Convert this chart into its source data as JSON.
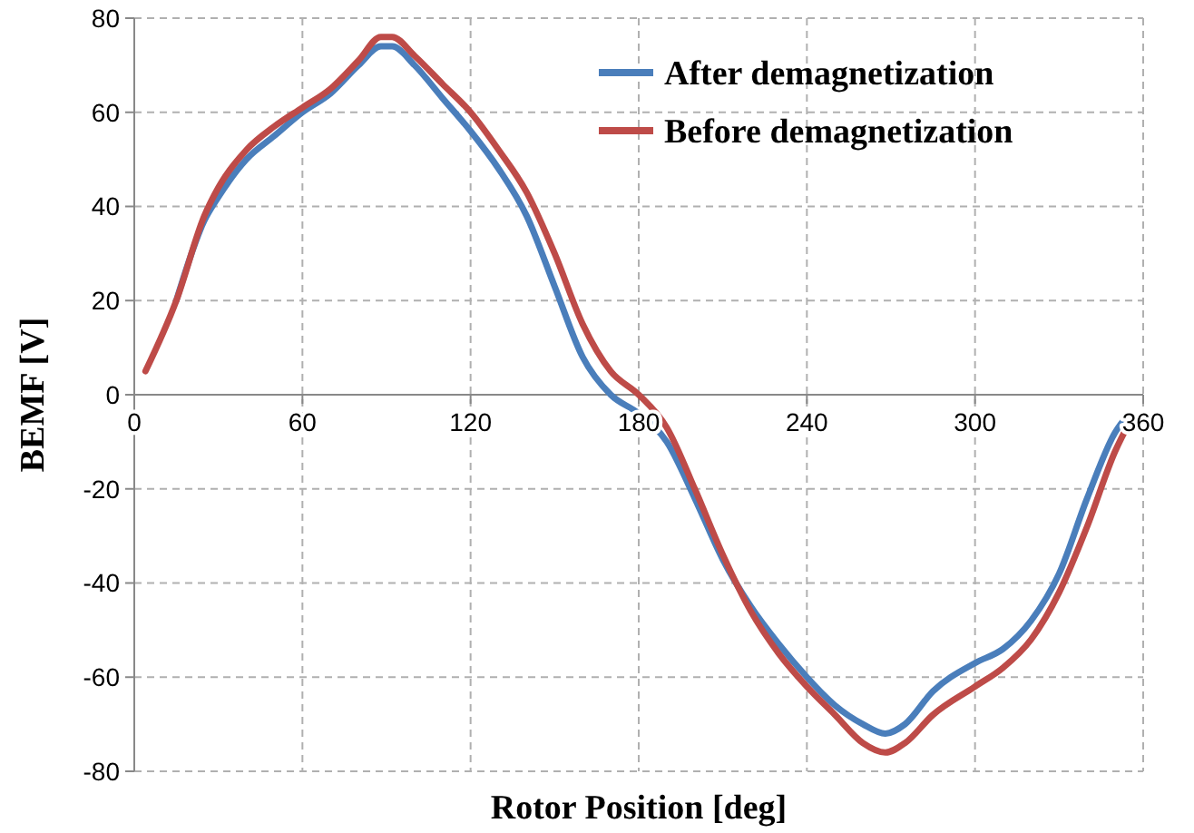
{
  "chart_data": {
    "type": "line",
    "xlabel": "Rotor Position [deg]",
    "ylabel": "BEMF [V]",
    "x": [
      4,
      15,
      25,
      30,
      40,
      50,
      60,
      70,
      80,
      88,
      92,
      100,
      110,
      120,
      130,
      140,
      150,
      160,
      170,
      180,
      190,
      200,
      210,
      220,
      230,
      240,
      250,
      260,
      268,
      275,
      285,
      300,
      310,
      320,
      330,
      340,
      350,
      355
    ],
    "series": [
      {
        "name": "After demagnetization",
        "color": "#4a7ebb",
        "values": [
          null,
          20,
          37,
          42,
          50,
          55,
          60,
          64,
          70,
          74,
          74,
          70,
          63,
          56,
          48,
          38,
          23,
          8,
          0,
          -4,
          -10,
          -22,
          -35,
          -45,
          -53,
          -60,
          -66,
          -70,
          -72,
          -70,
          -63,
          -57,
          -54,
          -48,
          -38,
          -22,
          -8,
          -4
        ]
      },
      {
        "name": "Before demagnetization",
        "color": "#be4b48",
        "values": [
          5,
          20,
          38,
          44,
          52,
          57,
          61,
          65,
          71,
          76,
          76,
          72,
          66,
          60,
          52,
          43,
          30,
          15,
          5,
          0,
          -7,
          -20,
          -34,
          -46,
          -55,
          -62,
          -68,
          -74,
          -76,
          -74,
          -68,
          -62,
          -58,
          -52,
          -42,
          -28,
          -12,
          -6
        ]
      }
    ],
    "xlim": [
      0,
      360
    ],
    "xticks": [
      0,
      60,
      120,
      180,
      240,
      300,
      360
    ],
    "ylim": [
      -80,
      80
    ],
    "yticks": [
      -80,
      -60,
      -40,
      -20,
      0,
      20,
      40,
      60,
      80
    ],
    "grid": true,
    "legend": "top right",
    "line_style": "solid",
    "marker": "none"
  }
}
